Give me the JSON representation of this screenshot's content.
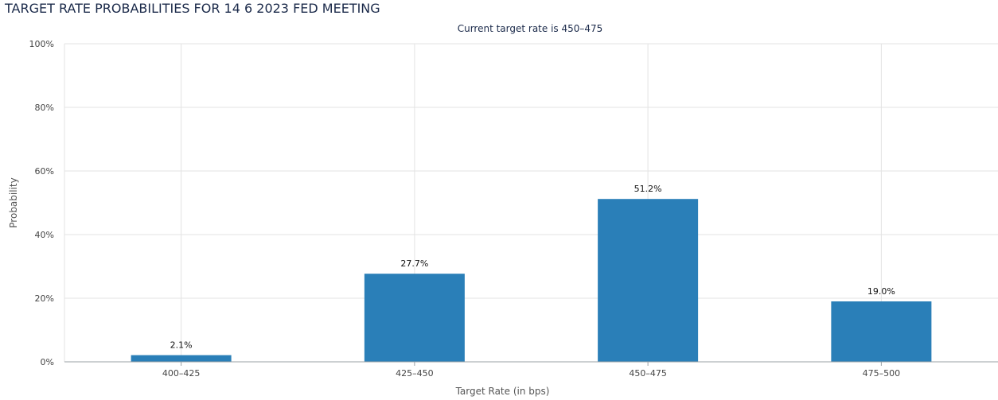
{
  "title": "TARGET RATE PROBABILITIES FOR 14 6 2023 FED MEETING",
  "subtitle": "Current target rate is 450–475",
  "colors": {
    "bar": "#2a7fb8",
    "grid": "#e3e3e3",
    "axis": "#9aa0a6"
  },
  "chart_data": {
    "type": "bar",
    "title": "TARGET RATE PROBABILITIES FOR 14 6 2023 FED MEETING",
    "subtitle": "Current target rate is 450–475",
    "categories": [
      "400–425",
      "425–450",
      "450–475",
      "475–500"
    ],
    "values": [
      2.1,
      27.7,
      51.2,
      19.0
    ],
    "data_labels": [
      "2.1%",
      "27.7%",
      "51.2%",
      "19.0%"
    ],
    "xlabel": "Target Rate (in bps)",
    "ylabel": "Probability",
    "ylim": [
      0,
      100
    ],
    "yticks": [
      "0%",
      "20%",
      "40%",
      "60%",
      "80%",
      "100%"
    ],
    "ytick_values": [
      0,
      20,
      40,
      60,
      80,
      100
    ],
    "grid": true,
    "legend": "none"
  }
}
